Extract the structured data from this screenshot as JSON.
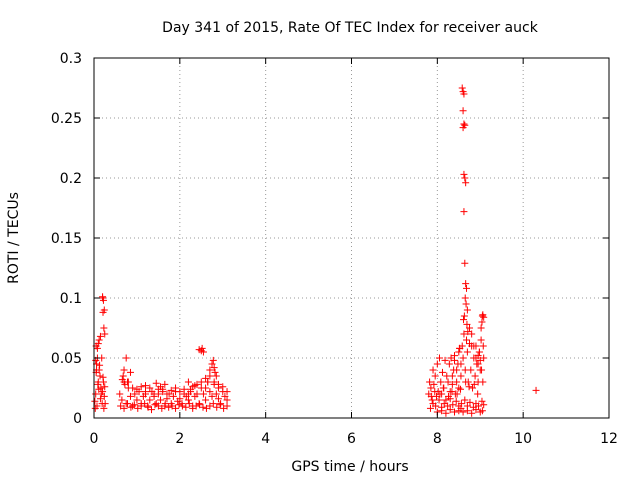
{
  "chart_data": {
    "type": "scatter",
    "title": "Day 341 of 2015, Rate Of TEC Index for receiver auck",
    "xlabel": "GPS time / hours",
    "ylabel": "ROTI / TECUs",
    "xlim": [
      0,
      12
    ],
    "ylim": [
      0,
      0.3
    ],
    "x_ticks": [
      {
        "value": 0,
        "label": "0"
      },
      {
        "value": 2,
        "label": "2"
      },
      {
        "value": 4,
        "label": "4"
      },
      {
        "value": 6,
        "label": "6"
      },
      {
        "value": 8,
        "label": "8"
      },
      {
        "value": 10,
        "label": "10"
      },
      {
        "value": 12,
        "label": "12"
      }
    ],
    "y_ticks": [
      {
        "value": 0,
        "label": "0"
      },
      {
        "value": 0.05,
        "label": "0.05"
      },
      {
        "value": 0.1,
        "label": "0.1"
      },
      {
        "value": 0.15,
        "label": "0.15"
      },
      {
        "value": 0.2,
        "label": "0.2"
      },
      {
        "value": 0.25,
        "label": "0.25"
      },
      {
        "value": 0.3,
        "label": "0.3"
      }
    ],
    "grid": true,
    "marker": "plus",
    "marker_color": "#ff0000",
    "series": [
      {
        "name": "ROTI",
        "x": [
          0.02,
          0.04,
          0.06,
          0.08,
          0.1,
          0.12,
          0.14,
          0.16,
          0.18,
          0.2,
          0.22,
          0.24,
          0.26,
          0.03,
          0.07,
          0.11,
          0.15,
          0.19,
          0.23,
          0.05,
          0.09,
          0.13,
          0.17,
          0.21,
          0.25,
          0.2,
          0.2,
          0.22,
          0.24,
          0.21,
          0.23,
          0.25,
          0.05,
          0.08,
          0.04,
          0.06,
          0.1,
          0.12,
          0.15,
          0.6,
          0.65,
          0.7,
          0.75,
          0.8,
          0.85,
          0.9,
          0.95,
          1.0,
          1.05,
          1.1,
          1.15,
          1.2,
          1.25,
          1.3,
          1.35,
          1.4,
          1.45,
          1.5,
          1.55,
          1.6,
          1.65,
          1.7,
          1.75,
          1.8,
          1.85,
          1.9,
          1.95,
          2.0,
          2.05,
          2.1,
          2.15,
          2.2,
          2.25,
          2.3,
          2.35,
          2.4,
          2.45,
          2.5,
          2.55,
          2.6,
          2.65,
          2.7,
          2.75,
          2.8,
          2.85,
          2.9,
          2.95,
          3.0,
          3.05,
          3.1,
          0.62,
          0.7,
          0.78,
          0.86,
          0.94,
          1.02,
          1.1,
          1.18,
          1.26,
          1.34,
          1.42,
          1.5,
          1.58,
          1.66,
          1.74,
          1.82,
          1.9,
          1.98,
          2.06,
          2.14,
          2.22,
          2.3,
          2.38,
          2.46,
          2.54,
          2.62,
          2.7,
          2.78,
          2.86,
          2.94,
          3.02,
          3.1,
          0.68,
          0.72,
          0.8,
          0.9,
          1.0,
          1.1,
          1.2,
          1.3,
          1.4,
          1.5,
          1.6,
          1.7,
          1.8,
          1.9,
          2.0,
          2.1,
          2.2,
          2.3,
          2.4,
          2.5,
          2.6,
          2.7,
          2.8,
          2.9,
          3.0,
          3.1,
          0.7,
          0.75,
          0.85,
          1.65,
          2.2,
          2.45,
          2.5,
          2.52,
          2.55,
          2.7,
          2.75,
          2.78,
          2.8,
          2.82,
          2.85,
          2.6,
          2.65,
          0.66,
          0.78,
          1.2,
          1.45,
          1.55,
          2.25,
          2.35,
          2.9,
          7.8,
          7.82,
          7.85,
          7.88,
          7.9,
          7.92,
          7.95,
          7.98,
          8.0,
          8.02,
          8.05,
          8.08,
          8.1,
          8.12,
          8.15,
          8.18,
          8.2,
          8.22,
          8.25,
          8.28,
          8.3,
          8.32,
          8.35,
          8.38,
          8.4,
          8.42,
          8.45,
          8.48,
          8.5,
          8.52,
          8.55,
          8.58,
          8.6,
          8.62,
          8.65,
          8.68,
          8.7,
          8.72,
          8.75,
          8.78,
          8.8,
          8.82,
          8.85,
          8.88,
          8.9,
          8.92,
          8.95,
          8.98,
          9.0,
          9.02,
          9.05,
          9.08,
          7.84,
          7.9,
          7.96,
          8.04,
          8.1,
          8.16,
          8.24,
          8.3,
          8.36,
          8.44,
          8.5,
          8.56,
          8.64,
          8.7,
          8.76,
          8.84,
          8.9,
          8.96,
          9.04,
          9.08,
          7.86,
          7.94,
          8.06,
          8.14,
          8.26,
          8.34,
          8.46,
          8.54,
          8.66,
          8.74,
          8.86,
          8.94,
          9.06,
          8.0,
          8.1,
          8.2,
          8.3,
          8.4,
          8.5,
          8.55,
          8.6,
          8.7,
          8.8,
          8.9,
          9.0,
          9.05,
          8.58,
          8.6,
          8.62,
          8.6,
          8.62,
          8.64,
          8.6,
          8.62,
          8.64,
          8.66,
          8.62,
          8.64,
          8.66,
          8.68,
          8.65,
          8.67,
          8.7,
          8.63,
          8.61,
          8.69,
          8.71,
          8.5,
          8.52,
          8.55,
          8.45,
          8.4,
          8.35,
          8.75,
          8.8,
          8.85,
          8.9,
          8.95,
          9.0,
          9.02,
          9.04,
          9.06,
          9.08,
          8.95,
          8.98,
          9.03,
          9.07,
          10.3
        ],
        "y": [
          0.014,
          0.02,
          0.045,
          0.05,
          0.03,
          0.04,
          0.035,
          0.025,
          0.05,
          0.022,
          0.03,
          0.018,
          0.012,
          0.008,
          0.01,
          0.024,
          0.016,
          0.012,
          0.008,
          0.038,
          0.028,
          0.044,
          0.02,
          0.034,
          0.026,
          0.1,
          0.101,
          0.098,
          0.09,
          0.088,
          0.075,
          0.07,
          0.06,
          0.058,
          0.048,
          0.04,
          0.062,
          0.065,
          0.068,
          0.02,
          0.015,
          0.03,
          0.012,
          0.025,
          0.018,
          0.01,
          0.02,
          0.015,
          0.022,
          0.012,
          0.018,
          0.02,
          0.01,
          0.015,
          0.022,
          0.018,
          0.012,
          0.02,
          0.015,
          0.024,
          0.01,
          0.016,
          0.02,
          0.012,
          0.018,
          0.022,
          0.014,
          0.016,
          0.012,
          0.02,
          0.018,
          0.015,
          0.022,
          0.01,
          0.018,
          0.02,
          0.012,
          0.025,
          0.02,
          0.015,
          0.03,
          0.022,
          0.018,
          0.028,
          0.02,
          0.016,
          0.012,
          0.022,
          0.018,
          0.015,
          0.01,
          0.008,
          0.012,
          0.009,
          0.011,
          0.008,
          0.01,
          0.012,
          0.009,
          0.007,
          0.011,
          0.01,
          0.008,
          0.012,
          0.009,
          0.01,
          0.008,
          0.011,
          0.01,
          0.009,
          0.012,
          0.008,
          0.01,
          0.011,
          0.009,
          0.008,
          0.01,
          0.012,
          0.009,
          0.011,
          0.008,
          0.01,
          0.035,
          0.028,
          0.03,
          0.025,
          0.024,
          0.026,
          0.022,
          0.025,
          0.02,
          0.024,
          0.022,
          0.02,
          0.023,
          0.025,
          0.022,
          0.024,
          0.02,
          0.026,
          0.028,
          0.03,
          0.025,
          0.035,
          0.03,
          0.028,
          0.026,
          0.022,
          0.04,
          0.05,
          0.038,
          0.028,
          0.03,
          0.057,
          0.056,
          0.058,
          0.055,
          0.04,
          0.045,
          0.048,
          0.042,
          0.038,
          0.035,
          0.033,
          0.03,
          0.032,
          0.03,
          0.027,
          0.029,
          0.026,
          0.024,
          0.027,
          0.025,
          0.02,
          0.03,
          0.025,
          0.015,
          0.04,
          0.028,
          0.035,
          0.018,
          0.045,
          0.022,
          0.05,
          0.03,
          0.02,
          0.038,
          0.025,
          0.048,
          0.015,
          0.035,
          0.03,
          0.045,
          0.022,
          0.05,
          0.028,
          0.04,
          0.052,
          0.02,
          0.03,
          0.045,
          0.025,
          0.058,
          0.035,
          0.06,
          0.05,
          0.07,
          0.04,
          0.065,
          0.055,
          0.03,
          0.075,
          0.04,
          0.06,
          0.025,
          0.05,
          0.035,
          0.06,
          0.045,
          0.03,
          0.055,
          0.04,
          0.065,
          0.085,
          0.05,
          0.008,
          0.012,
          0.01,
          0.015,
          0.009,
          0.012,
          0.01,
          0.016,
          0.011,
          0.014,
          0.01,
          0.012,
          0.015,
          0.01,
          0.013,
          0.009,
          0.012,
          0.01,
          0.014,
          0.011,
          0.018,
          0.022,
          0.02,
          0.025,
          0.018,
          0.022,
          0.02,
          0.024,
          0.03,
          0.026,
          0.028,
          0.02,
          0.03,
          0.005,
          0.006,
          0.004,
          0.007,
          0.005,
          0.006,
          0.008,
          0.005,
          0.006,
          0.004,
          0.007,
          0.005,
          0.006,
          0.275,
          0.272,
          0.27,
          0.256,
          0.245,
          0.244,
          0.242,
          0.203,
          0.2,
          0.196,
          0.172,
          0.129,
          0.112,
          0.108,
          0.1,
          0.095,
          0.09,
          0.085,
          0.082,
          0.078,
          0.072,
          0.055,
          0.058,
          0.045,
          0.04,
          0.048,
          0.035,
          0.062,
          0.07,
          0.06,
          0.05,
          0.052,
          0.048,
          0.075,
          0.08,
          0.086,
          0.084,
          0.045,
          0.055,
          0.04,
          0.06,
          0.023
        ]
      }
    ]
  }
}
